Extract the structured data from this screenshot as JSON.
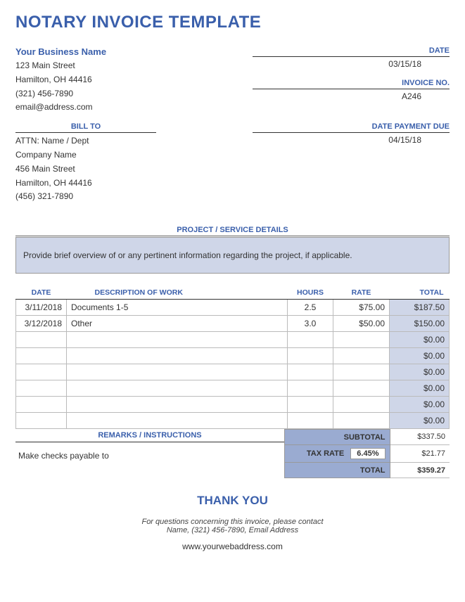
{
  "title": "NOTARY INVOICE TEMPLATE",
  "colors": {
    "accent": "#3a5fab",
    "shade_light": "#cfd6e8",
    "shade_mid": "#9aabd1"
  },
  "business": {
    "name": "Your Business Name",
    "street": "123 Main Street",
    "city": "Hamilton, OH 44416",
    "phone": "(321) 456-7890",
    "email": "email@address.com"
  },
  "meta": {
    "date_label": "DATE",
    "date": "03/15/18",
    "invoice_label": "INVOICE NO.",
    "invoice": "A246",
    "due_label": "DATE PAYMENT DUE",
    "due": "04/15/18"
  },
  "billto": {
    "label": "BILL TO",
    "attn": "ATTN: Name / Dept",
    "company": "Company Name",
    "street": "456 Main Street",
    "city": "Hamilton, OH 44416",
    "phone": "(456) 321-7890"
  },
  "details": {
    "header": "PROJECT / SERVICE DETAILS",
    "text": "Provide brief overview of or any pertinent information regarding the project, if applicable."
  },
  "items": {
    "headers": {
      "date": "DATE",
      "desc": "DESCRIPTION OF WORK",
      "hours": "HOURS",
      "rate": "RATE",
      "total": "TOTAL"
    },
    "rows": [
      {
        "date": "3/11/2018",
        "desc": "Documents 1-5",
        "hours": "2.5",
        "rate": "$75.00",
        "total": "$187.50"
      },
      {
        "date": "3/12/2018",
        "desc": "Other",
        "hours": "3.0",
        "rate": "$50.00",
        "total": "$150.00"
      },
      {
        "date": "",
        "desc": "",
        "hours": "",
        "rate": "",
        "total": "$0.00"
      },
      {
        "date": "",
        "desc": "",
        "hours": "",
        "rate": "",
        "total": "$0.00"
      },
      {
        "date": "",
        "desc": "",
        "hours": "",
        "rate": "",
        "total": "$0.00"
      },
      {
        "date": "",
        "desc": "",
        "hours": "",
        "rate": "",
        "total": "$0.00"
      },
      {
        "date": "",
        "desc": "",
        "hours": "",
        "rate": "",
        "total": "$0.00"
      },
      {
        "date": "",
        "desc": "",
        "hours": "",
        "rate": "",
        "total": "$0.00"
      }
    ]
  },
  "remarks": {
    "header": "REMARKS / INSTRUCTIONS",
    "text": "Make checks payable to"
  },
  "totals": {
    "subtotal_label": "SUBTOTAL",
    "subtotal": "$337.50",
    "taxrate_label": "TAX RATE",
    "taxrate": "6.45%",
    "tax_amount": "$21.77",
    "total_label": "TOTAL",
    "total": "$359.27"
  },
  "thanks": "THANK YOU",
  "footer": {
    "line1": "For questions concerning this invoice, please contact",
    "line2": "Name, (321) 456-7890, Email Address",
    "web": "www.yourwebaddress.com"
  }
}
